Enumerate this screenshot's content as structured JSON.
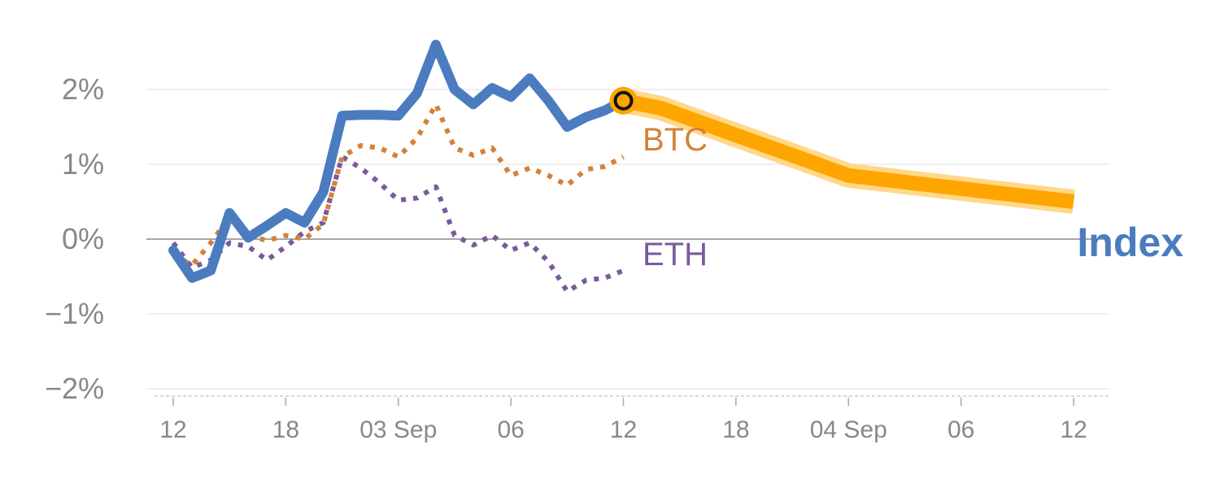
{
  "colors": {
    "index": "#4a7cbf",
    "btc": "#d4813a",
    "eth": "#7a5a9e",
    "forecast": "#ffa500",
    "forecast_halo": "#ffd88a",
    "grid": "#e6e6e6",
    "zero_line": "#8a8a8a",
    "tick_text": "#888888"
  },
  "chart_data": {
    "type": "line",
    "y_unit": "%",
    "ylim": [
      -2.1,
      2.6
    ],
    "y_ticks": [
      2,
      1,
      0,
      -1,
      -2
    ],
    "y_tick_labels": [
      "2%",
      "1%",
      "0%",
      "−1%",
      "−2%"
    ],
    "x_ticks": [
      0,
      6,
      12,
      18,
      24,
      30,
      36,
      42,
      48
    ],
    "x_tick_labels": [
      "12",
      "18",
      "03 Sep",
      "06",
      "12",
      "18",
      "04 Sep",
      "06",
      "12"
    ],
    "x_axis_note": "hourly axis: 12:00 on 02 Sep through 12:00 on 04 Sep",
    "grid": true,
    "zero_line": true,
    "series": [
      {
        "name": "Index",
        "key": "index",
        "style": "solid",
        "x": [
          0,
          1,
          2,
          3,
          4,
          5,
          6,
          7,
          8,
          9,
          10,
          11,
          12,
          13,
          14,
          15,
          16,
          17,
          18,
          19,
          20,
          21,
          22,
          23,
          24
        ],
        "values": [
          -0.15,
          -0.52,
          -0.42,
          0.35,
          0.02,
          0.18,
          0.35,
          0.22,
          0.63,
          1.65,
          1.66,
          1.66,
          1.65,
          1.95,
          2.6,
          2.0,
          1.8,
          2.02,
          1.9,
          2.15,
          1.85,
          1.5,
          1.63,
          1.72,
          1.85
        ]
      },
      {
        "name": "BTC",
        "key": "btc",
        "style": "dotted",
        "x": [
          0,
          1,
          2,
          3,
          4,
          5,
          6,
          7,
          8,
          9,
          10,
          11,
          12,
          13,
          14,
          15,
          16,
          17,
          18,
          19,
          20,
          21,
          22,
          23,
          24
        ],
        "values": [
          -0.2,
          -0.35,
          -0.05,
          0.3,
          0.05,
          -0.02,
          0.05,
          0.0,
          0.2,
          1.1,
          1.25,
          1.22,
          1.1,
          1.35,
          1.8,
          1.22,
          1.12,
          1.22,
          0.85,
          0.95,
          0.85,
          0.72,
          0.93,
          0.97,
          1.1
        ]
      },
      {
        "name": "ETH",
        "key": "eth",
        "style": "dotted",
        "x": [
          0,
          1,
          2,
          3,
          4,
          5,
          6,
          7,
          8,
          9,
          10,
          11,
          12,
          13,
          14,
          15,
          16,
          17,
          18,
          19,
          20,
          21,
          22,
          23,
          24
        ],
        "values": [
          -0.05,
          -0.38,
          -0.28,
          -0.05,
          -0.1,
          -0.28,
          -0.1,
          0.1,
          0.22,
          1.1,
          0.95,
          0.75,
          0.52,
          0.55,
          0.7,
          0.05,
          -0.08,
          0.05,
          -0.15,
          -0.05,
          -0.3,
          -0.7,
          -0.55,
          -0.52,
          -0.42
        ]
      }
    ],
    "forecast": {
      "key": "forecast",
      "x": [
        24,
        26,
        36,
        48
      ],
      "values": [
        1.85,
        1.75,
        0.85,
        0.5
      ]
    },
    "marker": {
      "x": 24,
      "y": 1.85
    },
    "labels": {
      "btc": "BTC",
      "eth": "ETH",
      "index": "Index"
    }
  }
}
